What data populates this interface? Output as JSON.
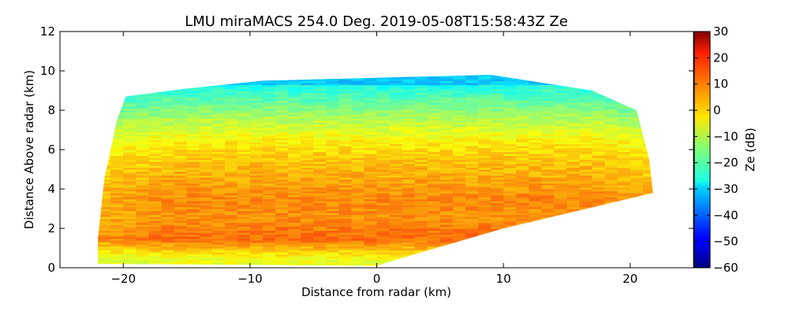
{
  "chart_data": {
    "type": "heatmap",
    "title": "LMU miraMACS 254.0 Deg. 2019-05-08T15:58:43Z  Ze",
    "xlabel": "Distance from radar (km)",
    "ylabel": "Distance Above radar  (km)",
    "xlim": [
      -25,
      25
    ],
    "ylim": [
      0,
      12
    ],
    "x_ticks": [
      -20,
      -10,
      0,
      10,
      20
    ],
    "x_tick_labels": [
      "−20",
      "−10",
      "0",
      "10",
      "20"
    ],
    "y_ticks": [
      0,
      2,
      4,
      6,
      8,
      10,
      12
    ],
    "y_tick_labels": [
      "0",
      "2",
      "4",
      "6",
      "8",
      "10",
      "12"
    ],
    "colorbar": {
      "label": "Ze (dB)",
      "range": [
        -60,
        30
      ],
      "colormap": "jet",
      "ticks": [
        30,
        20,
        10,
        0,
        -10,
        -20,
        -30,
        -40,
        -50,
        -60
      ],
      "tick_labels": [
        "30",
        "20",
        "10",
        "0",
        "−10",
        "−20",
        "−30",
        "−40",
        "−50",
        "−60"
      ]
    },
    "echo_region": {
      "description_units": "km",
      "outline": [
        [
          -22,
          0.2
        ],
        [
          -22,
          1.5
        ],
        [
          -21.5,
          4.5
        ],
        [
          -20.5,
          7.5
        ],
        [
          -19.8,
          8.7
        ],
        [
          -15,
          9.1
        ],
        [
          -9,
          9.5
        ],
        [
          -3,
          9.6
        ],
        [
          3,
          9.7
        ],
        [
          9,
          9.8
        ],
        [
          13,
          9.4
        ],
        [
          17,
          9.0
        ],
        [
          20.5,
          8.0
        ],
        [
          21.5,
          5.5
        ],
        [
          21.8,
          3.8
        ],
        [
          10,
          2.0
        ],
        [
          2,
          0.5
        ],
        [
          0,
          0.1
        ]
      ],
      "vertical_profile_dB": [
        {
          "height_km": 0.5,
          "ze_dB": -5
        },
        {
          "height_km": 1.5,
          "ze_dB": 10
        },
        {
          "height_km": 2.5,
          "ze_dB": 6
        },
        {
          "height_km": 3.5,
          "ze_dB": 7
        },
        {
          "height_km": 4.5,
          "ze_dB": 4
        },
        {
          "height_km": 5.5,
          "ze_dB": 1
        },
        {
          "height_km": 6.5,
          "ze_dB": -3
        },
        {
          "height_km": 7.5,
          "ze_dB": -10
        },
        {
          "height_km": 8.5,
          "ze_dB": -18
        },
        {
          "height_km": 9.3,
          "ze_dB": -25
        }
      ]
    }
  }
}
